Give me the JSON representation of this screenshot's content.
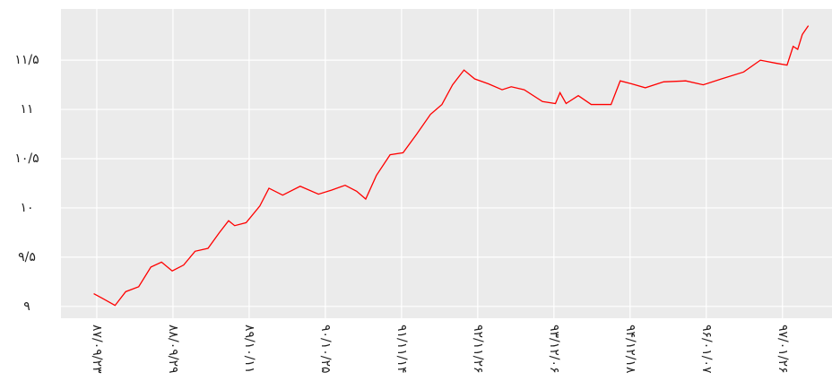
{
  "chart_data": {
    "type": "line",
    "x": [
      -0.04,
      0.08,
      0.24,
      0.38,
      0.55,
      0.71,
      0.85,
      0.99,
      1.14,
      1.29,
      1.46,
      1.61,
      1.73,
      1.81,
      1.96,
      2.14,
      2.26,
      2.44,
      2.67,
      2.91,
      3.08,
      3.26,
      3.41,
      3.53,
      3.67,
      3.85,
      4.02,
      4.2,
      4.38,
      4.53,
      4.67,
      4.82,
      4.96,
      5.14,
      5.32,
      5.44,
      5.61,
      5.85,
      6.02,
      6.08,
      6.16,
      6.32,
      6.49,
      6.75,
      6.87,
      7.02,
      7.2,
      7.44,
      7.73,
      7.96,
      8.2,
      8.49,
      8.71,
      8.91,
      9.06,
      9.14,
      9.2,
      9.26,
      9.34
    ],
    "series": [
      {
        "color": "#ff0000",
        "values": [
          9.13,
          9.08,
          9.01,
          9.15,
          9.2,
          9.4,
          9.45,
          9.36,
          9.42,
          9.56,
          9.59,
          9.75,
          9.87,
          9.82,
          9.85,
          10.02,
          10.2,
          10.13,
          10.22,
          10.14,
          10.18,
          10.23,
          10.17,
          10.09,
          10.33,
          10.54,
          10.56,
          10.75,
          10.95,
          11.05,
          11.25,
          11.4,
          11.31,
          11.26,
          11.2,
          11.23,
          11.2,
          11.08,
          11.06,
          11.17,
          11.06,
          11.14,
          11.05,
          11.05,
          11.29,
          11.26,
          11.22,
          11.28,
          11.29,
          11.25,
          11.31,
          11.38,
          11.5,
          11.47,
          11.45,
          11.64,
          11.61,
          11.76,
          11.85
        ]
      }
    ],
    "xlim": [
      -0.47,
      9.65
    ],
    "xticks": [
      {
        "value": 0,
        "label": "۸۷/۰۹/۲۳"
      },
      {
        "value": 1,
        "label": "۸۸/۰۹/۲۹"
      },
      {
        "value": 2,
        "label": "۸۹/۱۰/۱۱"
      },
      {
        "value": 3,
        "label": "۹۰/۱۰/۲۵"
      },
      {
        "value": 4,
        "label": "۹۱/۱۱/۱۴"
      },
      {
        "value": 5,
        "label": "۹۲/۱۱/۲۶"
      },
      {
        "value": 6,
        "label": "۹۳/۱۲/۰۶"
      },
      {
        "value": 7,
        "label": "۹۴/۱۲/۱۸"
      },
      {
        "value": 8,
        "label": "۹۶/۰۱/۰۷"
      },
      {
        "value": 9,
        "label": "۹۷/۰۱/۲۶"
      }
    ],
    "ylim": [
      8.88,
      12.02
    ],
    "yticks": [
      {
        "value": 9,
        "label": "۹"
      },
      {
        "value": 9.5,
        "label": "۹/۵"
      },
      {
        "value": 10,
        "label": "۱۰"
      },
      {
        "value": 10.5,
        "label": "۱۰/۵"
      },
      {
        "value": 11,
        "label": "۱۱"
      },
      {
        "value": 11.5,
        "label": "۱۱/۵"
      }
    ],
    "grid": true
  }
}
